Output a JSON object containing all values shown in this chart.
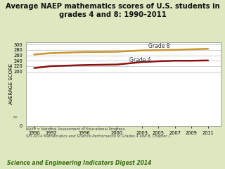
{
  "title": "Average NAEP mathematics scores of U.S. students in\ngrades 4 and 8: 1990–2011",
  "ylabel": "AVERAGE SCORE",
  "background_color": "#dde8c0",
  "plot_bg": "#ffffff",
  "plot_border": "#cccccc",
  "grade8_years": [
    1990,
    1992,
    1996,
    2000,
    2003,
    2005,
    2007,
    2009,
    2011
  ],
  "grade8_scores": [
    263,
    268,
    272,
    273,
    278,
    279,
    280,
    282,
    284
  ],
  "grade4_years": [
    1990,
    1992,
    1996,
    2000,
    2003,
    2005,
    2007,
    2009,
    2011
  ],
  "grade4_scores": [
    213,
    220,
    224,
    226,
    235,
    238,
    240,
    240,
    241
  ],
  "grade8_color": "#c8962a",
  "grade4_color": "#8b1010",
  "grade8_label": "Grade 8",
  "grade4_label": "Grade 4",
  "xticks": [
    1990,
    1992,
    1996,
    2000,
    2003,
    2005,
    2007,
    2009,
    2011
  ],
  "yticks": [
    0,
    200,
    220,
    240,
    260,
    280,
    300
  ],
  "ylim": [
    0,
    308
  ],
  "xlim": [
    1989.0,
    2012.5
  ],
  "footnote1": "NAEP = National Assessment of Educational Progress.",
  "footnote2": "SEI 2014 Mathematics and Science Performance in Grades 4 and 8, Chapter 1.",
  "footer": "Science and Engineering Indicators Digest 2014",
  "title_fontsize": 7.2,
  "tick_fontsize": 4.8,
  "label_fontsize": 5.0,
  "annot_fontsize": 5.5,
  "footer_fontsize": 5.5,
  "footnote_fontsize": 3.8
}
